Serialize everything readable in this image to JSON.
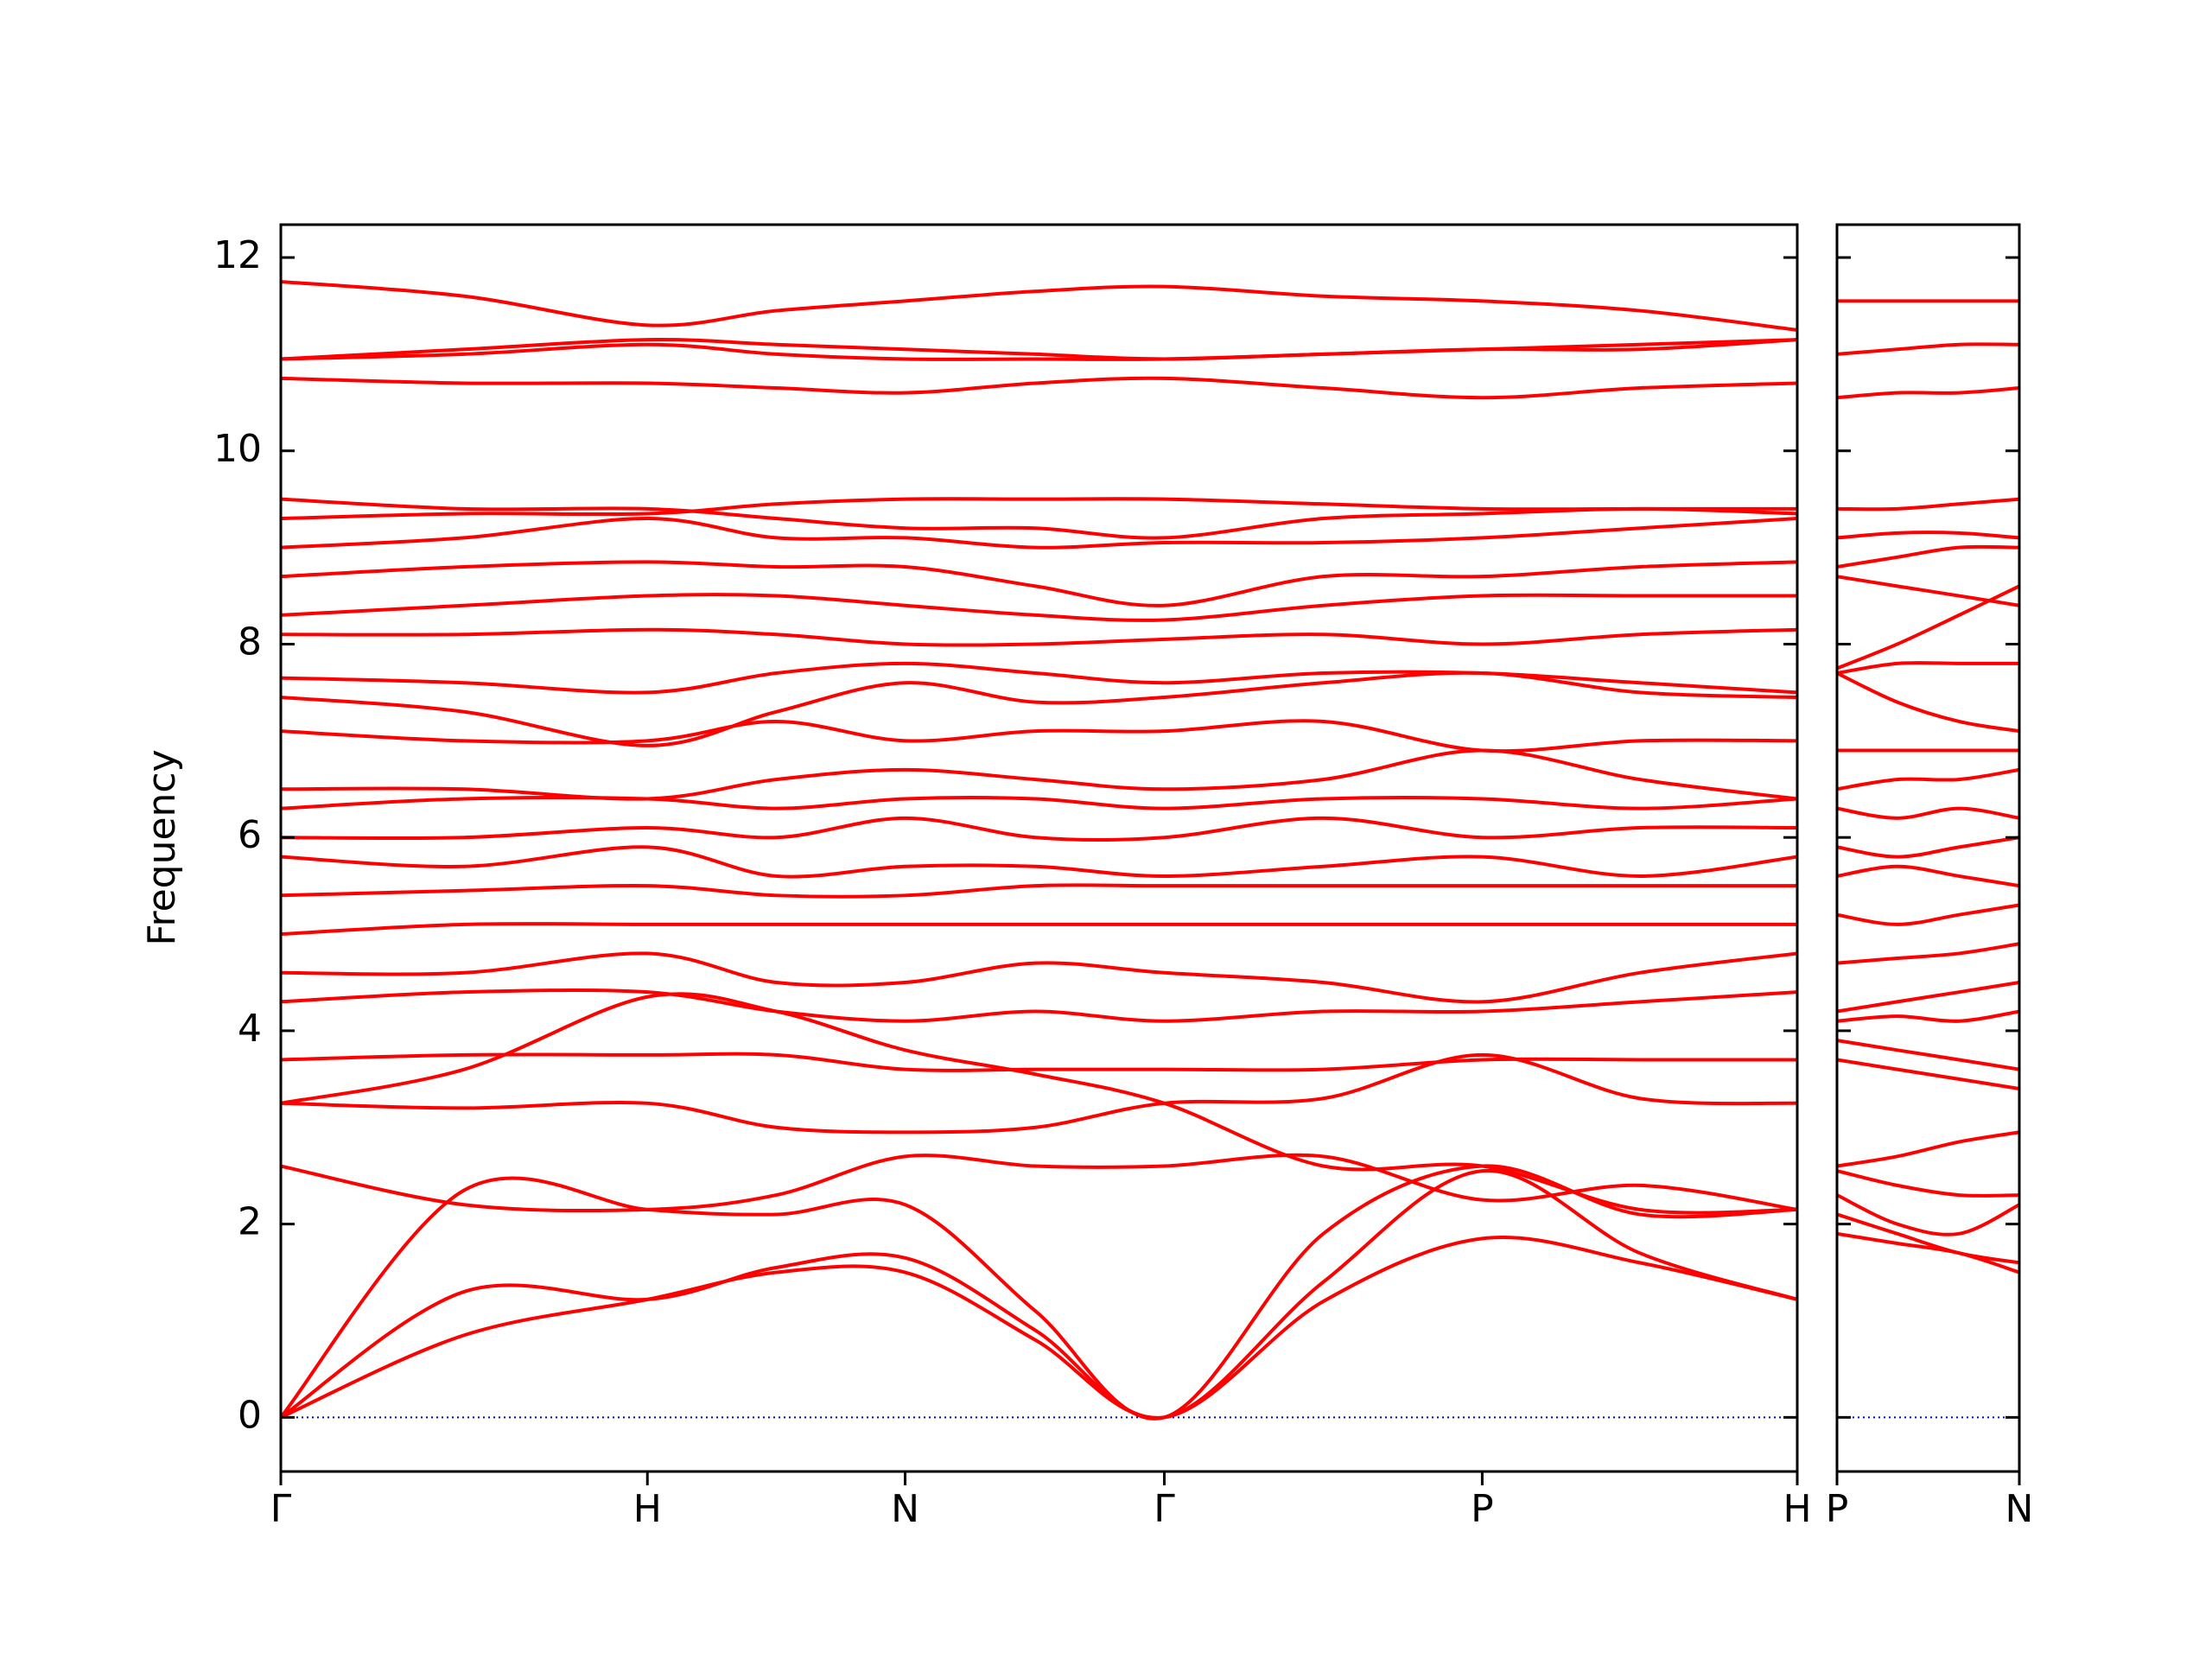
{
  "chart_data": [
    {
      "type": "line",
      "y_label": "Frequency",
      "color": "#ff0000",
      "xlim": [
        0,
        10.59
      ],
      "xticks": [
        {
          "value": 0,
          "label": "Γ"
        },
        {
          "value": 2.56,
          "label": "H"
        },
        {
          "value": 4.36,
          "label": "N"
        },
        {
          "value": 6.17,
          "label": "Γ"
        },
        {
          "value": 8.39,
          "label": "P"
        },
        {
          "value": 10.59,
          "label": "H"
        }
      ],
      "ylim": [
        -0.56,
        12.34
      ],
      "yticks": [
        0,
        2,
        4,
        6,
        8,
        10,
        12
      ],
      "hline": {
        "value": 0,
        "color": "#0000cc",
        "dash": "dotted"
      },
      "x": [
        0,
        1.28,
        2.56,
        3.46,
        4.36,
        5.27,
        6.17,
        7.28,
        8.39,
        9.49,
        10.59
      ],
      "series": [
        {
          "values": [
            0,
            0.85,
            1.22,
            1.5,
            1.5,
            0.8,
            0,
            1.2,
            1.85,
            1.6,
            1.22
          ]
        },
        {
          "values": [
            0,
            1.3,
            1.22,
            1.55,
            1.65,
            0.9,
            0,
            1.4,
            2.55,
            1.7,
            1.22
          ]
        },
        {
          "values": [
            0,
            2.35,
            2.15,
            2.1,
            2.2,
            1.1,
            0,
            1.9,
            2.6,
            2.1,
            2.15
          ]
        },
        {
          "values": [
            2.6,
            2.2,
            2.15,
            2.3,
            2.7,
            2.6,
            2.6,
            2.7,
            2.25,
            2.4,
            2.15
          ]
        },
        {
          "values": [
            3.25,
            3.2,
            3.25,
            3.0,
            2.95,
            3.0,
            3.25,
            3.3,
            3.75,
            3.3,
            3.25
          ]
        },
        {
          "values": [
            3.25,
            3.6,
            4.35,
            4.2,
            3.8,
            3.55,
            3.25,
            2.6,
            2.6,
            2.15,
            2.15
          ]
        },
        {
          "values": [
            3.7,
            3.75,
            3.75,
            3.75,
            3.6,
            3.6,
            3.6,
            3.6,
            3.7,
            3.7,
            3.7
          ]
        },
        {
          "values": [
            4.3,
            4.4,
            4.4,
            4.2,
            4.1,
            4.2,
            4.1,
            4.2,
            4.2,
            4.3,
            4.4
          ]
        },
        {
          "values": [
            4.6,
            4.6,
            4.8,
            4.5,
            4.5,
            4.7,
            4.6,
            4.5,
            4.3,
            4.6,
            4.8
          ]
        },
        {
          "values": [
            5.0,
            5.1,
            5.1,
            5.1,
            5.1,
            5.1,
            5.1,
            5.1,
            5.1,
            5.1,
            5.1
          ]
        },
        {
          "values": [
            5.4,
            5.45,
            5.5,
            5.4,
            5.4,
            5.5,
            5.5,
            5.5,
            5.5,
            5.5,
            5.5
          ]
        },
        {
          "values": [
            5.8,
            5.7,
            5.9,
            5.6,
            5.7,
            5.7,
            5.6,
            5.7,
            5.8,
            5.6,
            5.8
          ]
        },
        {
          "values": [
            6.0,
            6.0,
            6.1,
            6.0,
            6.2,
            6.0,
            6.0,
            6.2,
            6.0,
            6.1,
            6.1
          ]
        },
        {
          "values": [
            6.3,
            6.4,
            6.4,
            6.3,
            6.4,
            6.4,
            6.3,
            6.4,
            6.4,
            6.3,
            6.4
          ]
        },
        {
          "values": [
            6.5,
            6.5,
            6.4,
            6.6,
            6.7,
            6.6,
            6.5,
            6.6,
            6.9,
            6.6,
            6.4
          ]
        },
        {
          "values": [
            7.1,
            7.0,
            7.0,
            7.2,
            7.0,
            7.1,
            7.1,
            7.2,
            6.9,
            7.0,
            7.0
          ]
        },
        {
          "values": [
            7.45,
            7.3,
            6.95,
            7.3,
            7.6,
            7.4,
            7.45,
            7.6,
            7.7,
            7.5,
            7.45
          ]
        },
        {
          "values": [
            7.65,
            7.6,
            7.5,
            7.7,
            7.8,
            7.7,
            7.6,
            7.7,
            7.7,
            7.6,
            7.5
          ]
        },
        {
          "values": [
            8.1,
            8.1,
            8.15,
            8.1,
            8.0,
            8.0,
            8.05,
            8.1,
            8.0,
            8.1,
            8.15
          ]
        },
        {
          "values": [
            8.3,
            8.4,
            8.5,
            8.5,
            8.4,
            8.3,
            8.25,
            8.4,
            8.5,
            8.5,
            8.5
          ]
        },
        {
          "values": [
            8.7,
            8.8,
            8.85,
            8.8,
            8.8,
            8.6,
            8.4,
            8.7,
            8.7,
            8.8,
            8.85
          ]
        },
        {
          "values": [
            9.0,
            9.1,
            9.3,
            9.1,
            9.1,
            9.0,
            9.05,
            9.05,
            9.1,
            9.2,
            9.3
          ]
        },
        {
          "values": [
            9.3,
            9.35,
            9.35,
            9.45,
            9.5,
            9.5,
            9.5,
            9.45,
            9.4,
            9.4,
            9.4
          ]
        },
        {
          "values": [
            9.5,
            9.4,
            9.4,
            9.3,
            9.2,
            9.2,
            9.1,
            9.3,
            9.35,
            9.4,
            9.35
          ]
        },
        {
          "values": [
            10.75,
            10.7,
            10.7,
            10.65,
            10.6,
            10.7,
            10.75,
            10.65,
            10.55,
            10.65,
            10.7
          ]
        },
        {
          "values": [
            10.95,
            11.05,
            11.15,
            11.1,
            11.05,
            11.0,
            10.95,
            11.0,
            11.05,
            11.1,
            11.15
          ]
        },
        {
          "values": [
            10.95,
            11.0,
            11.1,
            11.0,
            10.95,
            10.95,
            10.95,
            11.0,
            11.05,
            11.05,
            11.15
          ]
        },
        {
          "values": [
            11.75,
            11.6,
            11.3,
            11.45,
            11.55,
            11.65,
            11.7,
            11.6,
            11.55,
            11.45,
            11.25
          ]
        }
      ]
    },
    {
      "type": "line",
      "color": "#ff0000",
      "xlim": [
        0,
        1.27
      ],
      "xticks": [
        {
          "value": 0,
          "label": "P"
        },
        {
          "value": 1.27,
          "label": "N"
        }
      ],
      "ylim": [
        -0.56,
        12.34
      ],
      "yticks": [
        0,
        2,
        4,
        6,
        8,
        10,
        12
      ],
      "hline": {
        "value": 0,
        "color": "#0000cc",
        "dash": "dotted"
      },
      "x": [
        0,
        0.42,
        0.85,
        1.27
      ],
      "series": [
        {
          "values": [
            1.9,
            1.8,
            1.7,
            1.5
          ]
        },
        {
          "values": [
            2.1,
            1.9,
            1.7,
            1.6
          ]
        },
        {
          "values": [
            2.3,
            2.0,
            1.9,
            2.2
          ]
        },
        {
          "values": [
            2.55,
            2.4,
            2.3,
            2.3
          ]
        },
        {
          "values": [
            2.6,
            2.7,
            2.85,
            2.95
          ]
        },
        {
          "values": [
            3.7,
            3.6,
            3.5,
            3.4
          ]
        },
        {
          "values": [
            3.9,
            3.8,
            3.7,
            3.6
          ]
        },
        {
          "values": [
            4.1,
            4.15,
            4.1,
            4.2
          ]
        },
        {
          "values": [
            4.2,
            4.3,
            4.4,
            4.5
          ]
        },
        {
          "values": [
            4.7,
            4.75,
            4.8,
            4.9
          ]
        },
        {
          "values": [
            5.2,
            5.1,
            5.2,
            5.3
          ]
        },
        {
          "values": [
            5.6,
            5.7,
            5.6,
            5.5
          ]
        },
        {
          "values": [
            5.9,
            5.8,
            5.9,
            6.0
          ]
        },
        {
          "values": [
            6.3,
            6.2,
            6.3,
            6.2
          ]
        },
        {
          "values": [
            6.5,
            6.6,
            6.6,
            6.7
          ]
        },
        {
          "values": [
            6.9,
            6.9,
            6.9,
            6.9
          ]
        },
        {
          "values": [
            7.7,
            7.4,
            7.2,
            7.1
          ]
        },
        {
          "values": [
            7.7,
            7.8,
            7.8,
            7.8
          ]
        },
        {
          "values": [
            7.75,
            8.0,
            8.3,
            8.6
          ]
        },
        {
          "values": [
            8.7,
            8.6,
            8.5,
            8.4
          ]
        },
        {
          "values": [
            8.8,
            8.9,
            9.0,
            9.0
          ]
        },
        {
          "values": [
            9.1,
            9.15,
            9.15,
            9.1
          ]
        },
        {
          "values": [
            9.4,
            9.4,
            9.45,
            9.5
          ]
        },
        {
          "values": [
            10.55,
            10.6,
            10.6,
            10.65
          ]
        },
        {
          "values": [
            11.0,
            11.05,
            11.1,
            11.1
          ]
        },
        {
          "values": [
            11.55,
            11.55,
            11.55,
            11.55
          ]
        }
      ]
    }
  ]
}
